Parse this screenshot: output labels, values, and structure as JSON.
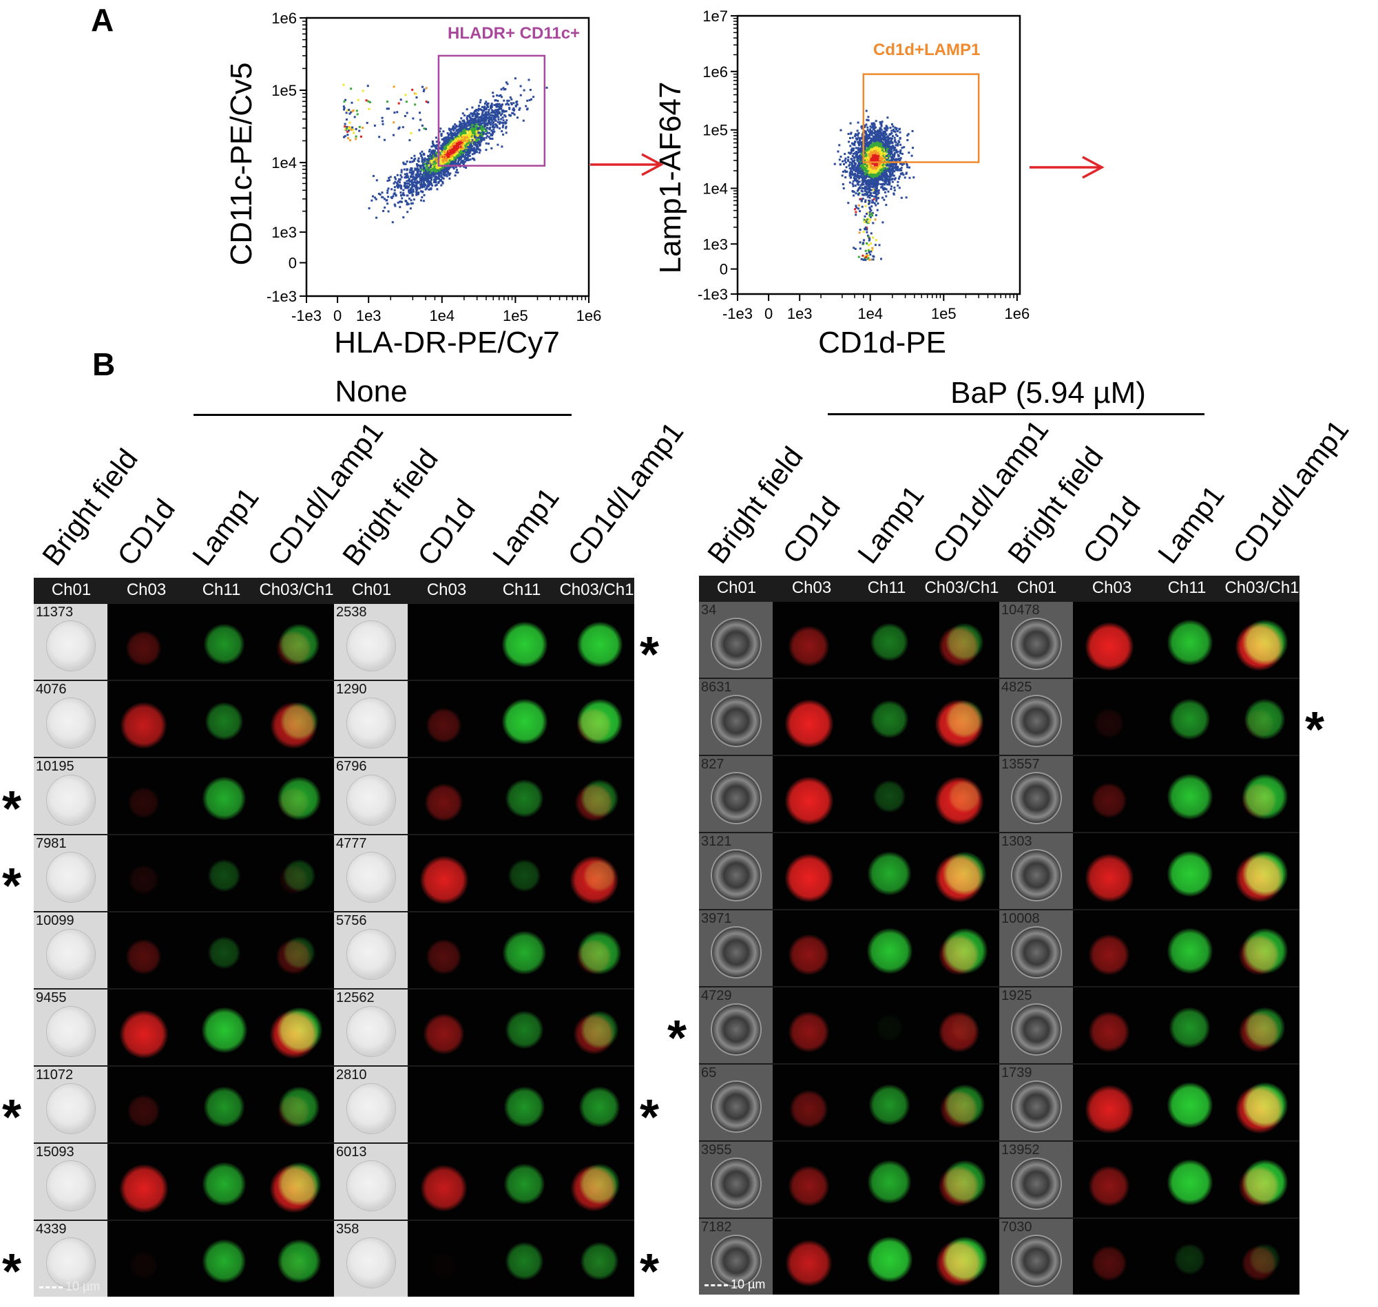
{
  "panel_a_letter": "A",
  "panel_b_letter": "B",
  "chart_data": [
    {
      "type": "scatter",
      "xlabel": "HLA-DR-PE/Cy7",
      "ylabel": "CD11c-PE/Cv5",
      "xticks": [
        "-1e3",
        "0",
        "1e3",
        "1e4",
        "1e5",
        "1e6"
      ],
      "yticks": [
        "1e6",
        "1e5",
        "1e4",
        "1e3",
        "0",
        "-1e3"
      ],
      "xlim": [
        -1000,
        1000000
      ],
      "ylim": [
        -1000,
        1000000
      ],
      "gate": {
        "label": "HLADR+ CD11c+",
        "x": [
          9000,
          250000
        ],
        "y": [
          9000,
          300000
        ],
        "color": "#a8479b"
      },
      "population": {
        "center_log10": [
          4.15,
          4.2
        ],
        "spread_log10": [
          0.3,
          0.32
        ],
        "correlation": 0.9,
        "events": 2600
      },
      "colors": [
        "#2b4a9b",
        "#3aa83a",
        "#f2e52a",
        "#f39c2a",
        "#e11d1d"
      ]
    },
    {
      "type": "scatter",
      "xlabel": "CD1d-PE",
      "ylabel": "Lamp1-AF647",
      "xticks": [
        "-1e3",
        "0",
        "1e3",
        "1e4",
        "1e5",
        "1e6"
      ],
      "yticks": [
        "1e7",
        "1e6",
        "1e5",
        "1e4",
        "1e3",
        "0",
        "-1e3"
      ],
      "xlim": [
        -1000,
        1000000
      ],
      "ylim": [
        -1000,
        10000000
      ],
      "gate": {
        "label": "Cd1d+LAMP1",
        "x": [
          8000,
          300000
        ],
        "y": [
          28000,
          900000
        ],
        "color": "#f08a2c"
      },
      "population": {
        "center_log10": [
          4.05,
          4.5
        ],
        "spread_log10": [
          0.14,
          0.28
        ],
        "correlation": 0.1,
        "events": 2200
      },
      "colors": [
        "#2b4a9b",
        "#3aa83a",
        "#f2e52a",
        "#f39c2a",
        "#e11d1d"
      ]
    }
  ],
  "arrow_color": "#e0262a",
  "groups": [
    {
      "title": "None",
      "column_labels": [
        "Bright field",
        "CD1d",
        "Lamp1",
        "CD1d/Lamp1",
        "Bright field",
        "CD1d",
        "Lamp1",
        "CD1d/Lamp1"
      ],
      "channel_headers": [
        "Ch01",
        "Ch03",
        "Ch11",
        "Ch03/Ch1",
        "Ch01",
        "Ch03",
        "Ch11",
        "Ch03/Ch1"
      ],
      "scale_bar": "10 µm",
      "sets": [
        {
          "rows": [
            {
              "id": "11373",
              "cd1d": 0.3,
              "lamp1": 0.6
            },
            {
              "id": "4076",
              "cd1d": 0.7,
              "lamp1": 0.5
            },
            {
              "id": "10195",
              "cd1d": 0.15,
              "lamp1": 0.7
            },
            {
              "id": "7981",
              "cd1d": 0.1,
              "lamp1": 0.3
            },
            {
              "id": "10099",
              "cd1d": 0.3,
              "lamp1": 0.3
            },
            {
              "id": "9455",
              "cd1d": 0.8,
              "lamp1": 0.8
            },
            {
              "id": "11072",
              "cd1d": 0.2,
              "lamp1": 0.6
            },
            {
              "id": "15093",
              "cd1d": 0.8,
              "lamp1": 0.7
            },
            {
              "id": "4339",
              "cd1d": 0.05,
              "lamp1": 0.7
            }
          ]
        },
        {
          "rows": [
            {
              "id": "2538",
              "cd1d": 0.0,
              "lamp1": 0.9
            },
            {
              "id": "1290",
              "cd1d": 0.3,
              "lamp1": 0.9
            },
            {
              "id": "6796",
              "cd1d": 0.4,
              "lamp1": 0.5
            },
            {
              "id": "4777",
              "cd1d": 0.8,
              "lamp1": 0.3
            },
            {
              "id": "5756",
              "cd1d": 0.3,
              "lamp1": 0.7
            },
            {
              "id": "12562",
              "cd1d": 0.5,
              "lamp1": 0.5
            },
            {
              "id": "2810",
              "cd1d": 0.0,
              "lamp1": 0.6
            },
            {
              "id": "6013",
              "cd1d": 0.7,
              "lamp1": 0.6
            },
            {
              "id": "358",
              "cd1d": 0.02,
              "lamp1": 0.5
            }
          ]
        }
      ],
      "asterisks_left": [
        2,
        3,
        6,
        8
      ],
      "asterisks_right": [
        0,
        6,
        8
      ]
    },
    {
      "title": "BaP (5.94 µM)",
      "column_labels": [
        "Bright field",
        "CD1d",
        "Lamp1",
        "CD1d/Lamp1",
        "Bright field",
        "CD1d",
        "Lamp1",
        "CD1d/Lamp1"
      ],
      "channel_headers": [
        "Ch01",
        "Ch03",
        "Ch11",
        "Ch03/Ch1",
        "Ch01",
        "Ch03",
        "Ch11",
        "Ch03/Ch1"
      ],
      "scale_bar": "10 µm",
      "sets": [
        {
          "rows": [
            {
              "id": "34",
              "cd1d": 0.5,
              "lamp1": 0.5
            },
            {
              "id": "8631",
              "cd1d": 0.9,
              "lamp1": 0.5
            },
            {
              "id": "827",
              "cd1d": 0.9,
              "lamp1": 0.3
            },
            {
              "id": "3121",
              "cd1d": 0.9,
              "lamp1": 0.7
            },
            {
              "id": "3971",
              "cd1d": 0.5,
              "lamp1": 0.8
            },
            {
              "id": "4729",
              "cd1d": 0.5,
              "lamp1": 0.05
            },
            {
              "id": "65",
              "cd1d": 0.4,
              "lamp1": 0.6
            },
            {
              "id": "3955",
              "cd1d": 0.5,
              "lamp1": 0.7
            },
            {
              "id": "7182",
              "cd1d": 0.7,
              "lamp1": 0.9
            }
          ]
        },
        {
          "rows": [
            {
              "id": "10478",
              "cd1d": 0.9,
              "lamp1": 0.8
            },
            {
              "id": "4825",
              "cd1d": 0.1,
              "lamp1": 0.6
            },
            {
              "id": "13557",
              "cd1d": 0.3,
              "lamp1": 0.8
            },
            {
              "id": "1303",
              "cd1d": 0.8,
              "lamp1": 0.9
            },
            {
              "id": "10008",
              "cd1d": 0.5,
              "lamp1": 0.8
            },
            {
              "id": "1925",
              "cd1d": 0.5,
              "lamp1": 0.6
            },
            {
              "id": "1739",
              "cd1d": 0.8,
              "lamp1": 0.9
            },
            {
              "id": "13952",
              "cd1d": 0.5,
              "lamp1": 0.9
            },
            {
              "id": "7030",
              "cd1d": 0.3,
              "lamp1": 0.2
            }
          ]
        }
      ],
      "asterisks_left": [
        5
      ],
      "asterisks_right": [
        1
      ]
    }
  ],
  "asterisk_symbol": "*"
}
